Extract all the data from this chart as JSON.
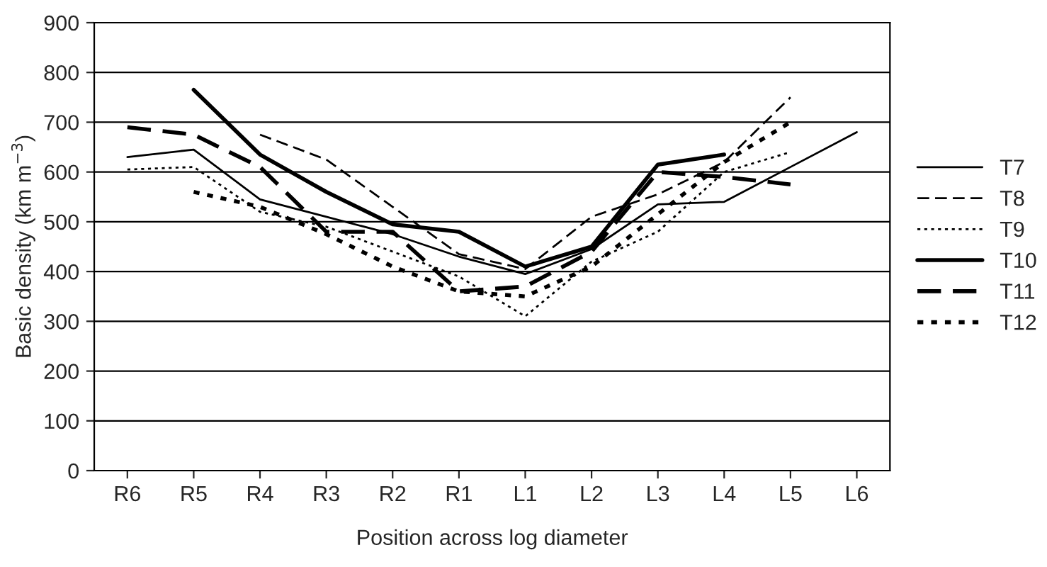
{
  "chart_data": {
    "type": "line",
    "xlabel": "Position across log diameter",
    "ylabel": "Basic density (km m$^{−3}$)",
    "categories": [
      "R6",
      "R5",
      "R4",
      "R3",
      "R2",
      "R1",
      "L1",
      "L2",
      "L3",
      "L4",
      "L5",
      "L6"
    ],
    "ylim": [
      0,
      900
    ],
    "yticks": [
      0,
      100,
      200,
      300,
      400,
      500,
      600,
      700,
      800,
      900
    ],
    "grid": "y",
    "legend": "right",
    "marker": "none",
    "series": [
      {
        "name": "T7",
        "color": "#000000",
        "line_style": "solid",
        "values": [
          630,
          645,
          545,
          510,
          475,
          430,
          395,
          445,
          535,
          540,
          610,
          680
        ]
      },
      {
        "name": "T8",
        "color": "#000000",
        "line_style": "dashed",
        "values": [
          null,
          null,
          675,
          625,
          530,
          435,
          405,
          510,
          555,
          620,
          750,
          null
        ]
      },
      {
        "name": "T9",
        "color": "#000000",
        "line_style": "dotted",
        "values": [
          605,
          610,
          520,
          490,
          440,
          390,
          310,
          420,
          480,
          600,
          640,
          null
        ]
      },
      {
        "name": "T10",
        "color": "#000000",
        "line_style": "solid",
        "values": [
          null,
          765,
          635,
          560,
          495,
          480,
          410,
          450,
          615,
          635,
          null,
          null
        ]
      },
      {
        "name": "T11",
        "color": "#000000",
        "line_style": "dashed",
        "values": [
          690,
          675,
          610,
          480,
          480,
          360,
          370,
          440,
          600,
          590,
          575,
          null
        ]
      },
      {
        "name": "T12",
        "color": "#000000",
        "line_style": "dotted",
        "values": [
          null,
          560,
          530,
          475,
          410,
          360,
          350,
          410,
          515,
          620,
          700,
          null
        ]
      }
    ]
  }
}
